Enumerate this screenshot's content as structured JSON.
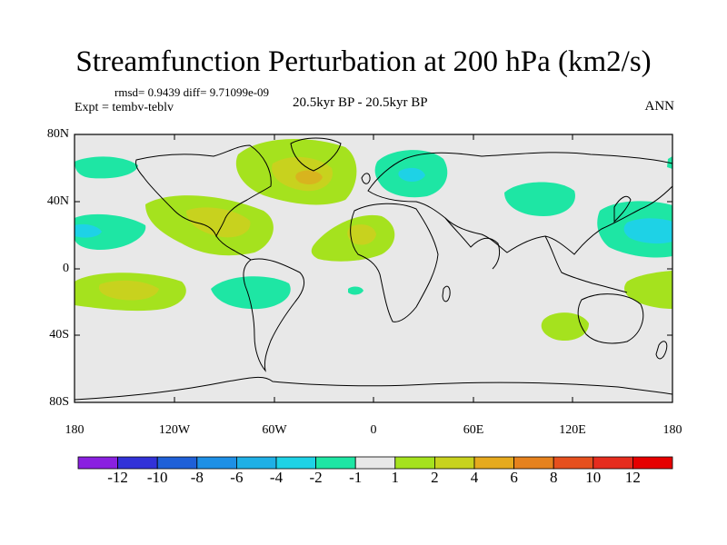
{
  "title": "Streamfunction Perturbation at 200 hPa (km2/s)",
  "stats": "rmsd= 0.9439 diff= 9.71099e-09",
  "experiment": "Expt = tembv-teblv",
  "period": "20.5kyr BP - 20.5kyr BP",
  "season": "ANN",
  "lat_labels": [
    "80N",
    "40N",
    "0",
    "40S",
    "80S"
  ],
  "lon_labels": [
    "180",
    "120W",
    "60W",
    "0",
    "60E",
    "120E",
    "180"
  ],
  "colorbar": {
    "labels": [
      "-12",
      "-10",
      "-8",
      "-6",
      "-4",
      "-2",
      "-1",
      "1",
      "2",
      "4",
      "6",
      "8",
      "10",
      "12"
    ],
    "colors": [
      "#8a20e0",
      "#3232d8",
      "#1f60d8",
      "#1e90e6",
      "#1fb0e6",
      "#1ed2e6",
      "#1ee6a4",
      "#e8e8e8",
      "#a5e21e",
      "#c8d21e",
      "#e6aa1e",
      "#e6821e",
      "#e6501e",
      "#e62d1e",
      "#e60000"
    ]
  },
  "map": {
    "background": "#e8e8e8",
    "coast_color": "#000000"
  }
}
